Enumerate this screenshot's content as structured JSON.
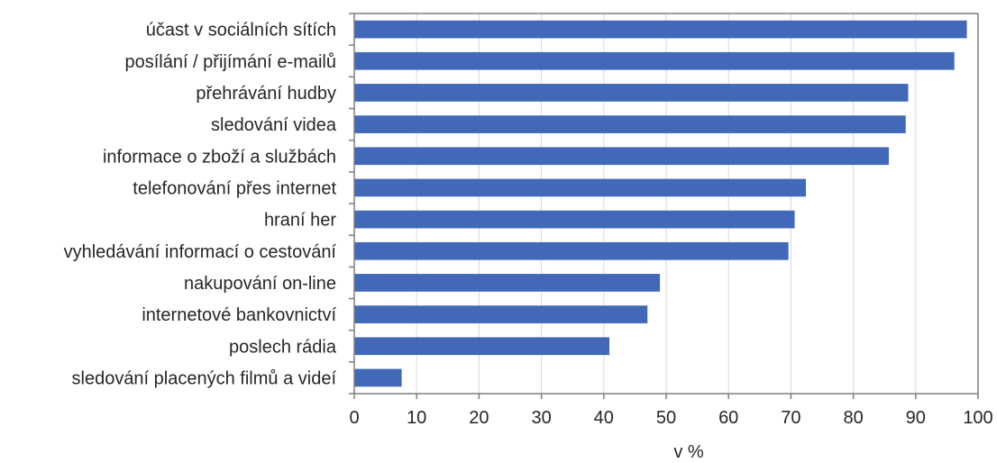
{
  "chart_data": {
    "type": "bar",
    "orientation": "horizontal",
    "categories": [
      "účast v sociálních sítích",
      "posílání / přijímání e-mailů",
      "přehrávání hudby",
      "sledování videa",
      "informace o zboží a službách",
      "telefonování přes internet",
      "hraní her",
      "vyhledávání informací o cestování",
      "nakupování on-line",
      "internetové bankovnictví",
      "poslech rádia",
      "sledování placených filmů a videí"
    ],
    "values": [
      98.2,
      96.2,
      88.8,
      88.4,
      85.7,
      72.4,
      70.6,
      69.6,
      49.0,
      47.0,
      40.9,
      7.6
    ],
    "xlabel": "v %",
    "ylabel": "",
    "xlim": [
      0,
      100
    ],
    "xticks": [
      0,
      10,
      20,
      30,
      40,
      50,
      60,
      70,
      80,
      90,
      100
    ],
    "grid": "vertical",
    "legend": "none",
    "bar_color": "#4169B8",
    "grid_color": "#D9D9D9",
    "axis_color": "#7F7F7F"
  }
}
